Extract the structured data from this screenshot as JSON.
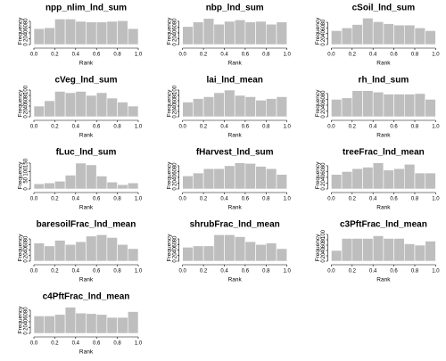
{
  "chart_data": [
    {
      "type": "histogram",
      "title": "npp_nlim_lnd_sum",
      "x_label": "Rank",
      "y_label": "Frequency",
      "color": "#bebebe",
      "bins": [
        0,
        0.1,
        0.2,
        0.3,
        0.4,
        0.5,
        0.6,
        0.7,
        0.8,
        0.9,
        1
      ],
      "values": [
        55,
        58,
        88,
        88,
        80,
        78,
        78,
        80,
        82,
        55
      ],
      "xlim": [
        0,
        1
      ],
      "ylim": [
        0,
        92
      ],
      "xticks": [
        {
          "value": 0,
          "label": "0.0"
        },
        {
          "value": 0.2,
          "label": "0.2"
        },
        {
          "value": 0.4,
          "label": "0.4"
        },
        {
          "value": 0.6,
          "label": "0.6"
        },
        {
          "value": 0.8,
          "label": "0.8"
        },
        {
          "value": 1,
          "label": "1.0"
        }
      ],
      "yticks": [
        0,
        20,
        40,
        60,
        80
      ]
    },
    {
      "type": "histogram",
      "title": "nbp_lnd_sum",
      "x_label": "Rank",
      "y_label": "Frequency",
      "color": "#bebebe",
      "bins": [
        0,
        0.1,
        0.2,
        0.3,
        0.4,
        0.5,
        0.6,
        0.7,
        0.8,
        0.9,
        1
      ],
      "values": [
        62,
        78,
        90,
        70,
        80,
        85,
        78,
        80,
        70,
        78
      ],
      "xlim": [
        0,
        1
      ],
      "ylim": [
        0,
        92
      ],
      "xticks": [
        {
          "value": 0,
          "label": "0.0"
        },
        {
          "value": 0.2,
          "label": "0.2"
        },
        {
          "value": 0.4,
          "label": "0.4"
        },
        {
          "value": 0.6,
          "label": "0.6"
        },
        {
          "value": 0.8,
          "label": "0.8"
        },
        {
          "value": 1,
          "label": "1.0"
        }
      ],
      "yticks": [
        0,
        20,
        40,
        60,
        80
      ]
    },
    {
      "type": "histogram",
      "title": "cSoil_lnd_sum",
      "x_label": "Rank",
      "y_label": "Frequency",
      "color": "#bebebe",
      "bins": [
        0,
        0.1,
        0.2,
        0.3,
        0.4,
        0.5,
        0.6,
        0.7,
        0.8,
        0.9,
        1
      ],
      "values": [
        50,
        60,
        72,
        95,
        82,
        75,
        70,
        70,
        60,
        50
      ],
      "xlim": [
        0,
        1
      ],
      "ylim": [
        0,
        96
      ],
      "xticks": [
        {
          "value": 0,
          "label": "0.0"
        },
        {
          "value": 0.2,
          "label": "0.2"
        },
        {
          "value": 0.4,
          "label": "0.4"
        },
        {
          "value": 0.6,
          "label": "0.6"
        },
        {
          "value": 0.8,
          "label": "0.8"
        },
        {
          "value": 1,
          "label": "1.0"
        }
      ],
      "yticks": [
        0,
        20,
        40,
        60,
        80
      ]
    },
    {
      "type": "histogram",
      "title": "cVeg_lnd_sum",
      "x_label": "Rank",
      "y_label": "Frequency",
      "color": "#bebebe",
      "bins": [
        0,
        0.1,
        0.2,
        0.3,
        0.4,
        0.5,
        0.6,
        0.7,
        0.8,
        0.9,
        1
      ],
      "values": [
        40,
        60,
        95,
        90,
        95,
        80,
        90,
        70,
        55,
        40
      ],
      "xlim": [
        0,
        1
      ],
      "ylim": [
        0,
        100
      ],
      "xticks": [
        {
          "value": 0,
          "label": "0.0"
        },
        {
          "value": 0.2,
          "label": "0.2"
        },
        {
          "value": 0.4,
          "label": "0.4"
        },
        {
          "value": 0.6,
          "label": "0.6"
        },
        {
          "value": 0.8,
          "label": "0.8"
        },
        {
          "value": 1,
          "label": "1.0"
        }
      ],
      "yticks": [
        0,
        20,
        40,
        60,
        80,
        100
      ]
    },
    {
      "type": "histogram",
      "title": "lai_lnd_mean",
      "x_label": "Rank",
      "y_label": "Frequency",
      "color": "#bebebe",
      "bins": [
        0,
        0.1,
        0.2,
        0.3,
        0.4,
        0.5,
        0.6,
        0.7,
        0.8,
        0.9,
        1
      ],
      "values": [
        55,
        68,
        75,
        90,
        100,
        80,
        75,
        62,
        68,
        75
      ],
      "xlim": [
        0,
        1
      ],
      "ylim": [
        0,
        100
      ],
      "xticks": [
        {
          "value": 0,
          "label": "0.0"
        },
        {
          "value": 0.2,
          "label": "0.2"
        },
        {
          "value": 0.4,
          "label": "0.4"
        },
        {
          "value": 0.6,
          "label": "0.6"
        },
        {
          "value": 0.8,
          "label": "0.8"
        },
        {
          "value": 1,
          "label": "1.0"
        }
      ],
      "yticks": [
        0,
        20,
        40,
        60,
        80,
        100
      ]
    },
    {
      "type": "histogram",
      "title": "rh_lnd_sum",
      "x_label": "Rank",
      "y_label": "Frequency",
      "color": "#bebebe",
      "bins": [
        0,
        0.1,
        0.2,
        0.3,
        0.4,
        0.5,
        0.6,
        0.7,
        0.8,
        0.9,
        1
      ],
      "values": [
        60,
        65,
        90,
        90,
        85,
        78,
        78,
        78,
        80,
        60
      ],
      "xlim": [
        0,
        1
      ],
      "ylim": [
        0,
        92
      ],
      "xticks": [
        {
          "value": 0,
          "label": "0.0"
        },
        {
          "value": 0.2,
          "label": "0.2"
        },
        {
          "value": 0.4,
          "label": "0.4"
        },
        {
          "value": 0.6,
          "label": "0.6"
        },
        {
          "value": 0.8,
          "label": "0.8"
        },
        {
          "value": 1,
          "label": "1.0"
        }
      ],
      "yticks": [
        0,
        20,
        40,
        60,
        80
      ]
    },
    {
      "type": "histogram",
      "title": "fLuc_lnd_sum",
      "x_label": "Rank",
      "y_label": "Frequency",
      "color": "#bebebe",
      "bins": [
        0,
        0.1,
        0.2,
        0.3,
        0.4,
        0.5,
        0.6,
        0.7,
        0.8,
        0.9,
        1
      ],
      "values": [
        30,
        35,
        45,
        80,
        150,
        140,
        75,
        40,
        25,
        35
      ],
      "xlim": [
        0,
        1
      ],
      "ylim": [
        0,
        155
      ],
      "xticks": [
        {
          "value": 0,
          "label": "0.0"
        },
        {
          "value": 0.2,
          "label": "0.2"
        },
        {
          "value": 0.4,
          "label": "0.4"
        },
        {
          "value": 0.6,
          "label": "0.6"
        },
        {
          "value": 0.8,
          "label": "0.8"
        },
        {
          "value": 1,
          "label": "1.0"
        }
      ],
      "yticks": [
        0,
        50,
        100,
        150
      ]
    },
    {
      "type": "histogram",
      "title": "fHarvest_lnd_sum",
      "x_label": "Rank",
      "y_label": "Frequency",
      "color": "#bebebe",
      "bins": [
        0,
        0.1,
        0.2,
        0.3,
        0.4,
        0.5,
        0.6,
        0.7,
        0.8,
        0.9,
        1
      ],
      "values": [
        45,
        55,
        70,
        70,
        80,
        90,
        88,
        78,
        70,
        50
      ],
      "xlim": [
        0,
        1
      ],
      "ylim": [
        0,
        92
      ],
      "xticks": [
        {
          "value": 0,
          "label": "0.0"
        },
        {
          "value": 0.2,
          "label": "0.2"
        },
        {
          "value": 0.4,
          "label": "0.4"
        },
        {
          "value": 0.6,
          "label": "0.6"
        },
        {
          "value": 0.8,
          "label": "0.8"
        },
        {
          "value": 1,
          "label": "1.0"
        }
      ],
      "yticks": [
        0,
        20,
        40,
        60,
        80
      ]
    },
    {
      "type": "histogram",
      "title": "treeFrac_lnd_mean",
      "x_label": "Rank",
      "y_label": "Frequency",
      "color": "#bebebe",
      "bins": [
        0,
        0.1,
        0.2,
        0.3,
        0.4,
        0.5,
        0.6,
        0.7,
        0.8,
        0.9,
        1
      ],
      "values": [
        50,
        60,
        70,
        75,
        90,
        65,
        70,
        85,
        55,
        55
      ],
      "xlim": [
        0,
        1
      ],
      "ylim": [
        0,
        92
      ],
      "xticks": [
        {
          "value": 0,
          "label": "0.0"
        },
        {
          "value": 0.2,
          "label": "0.2"
        },
        {
          "value": 0.4,
          "label": "0.4"
        },
        {
          "value": 0.6,
          "label": "0.6"
        },
        {
          "value": 0.8,
          "label": "0.8"
        },
        {
          "value": 1,
          "label": "1.0"
        }
      ],
      "yticks": [
        0,
        20,
        40,
        60,
        80
      ]
    },
    {
      "type": "histogram",
      "title": "baresoilFrac_lnd_mean",
      "x_label": "Rank",
      "y_label": "Frequency",
      "color": "#bebebe",
      "bins": [
        0,
        0.1,
        0.2,
        0.3,
        0.4,
        0.5,
        0.6,
        0.7,
        0.8,
        0.9,
        1
      ],
      "values": [
        65,
        55,
        75,
        60,
        70,
        90,
        95,
        85,
        60,
        45
      ],
      "xlim": [
        0,
        1
      ],
      "ylim": [
        0,
        96
      ],
      "xticks": [
        {
          "value": 0,
          "label": "0.0"
        },
        {
          "value": 0.2,
          "label": "0.2"
        },
        {
          "value": 0.4,
          "label": "0.4"
        },
        {
          "value": 0.6,
          "label": "0.6"
        },
        {
          "value": 0.8,
          "label": "0.8"
        },
        {
          "value": 1,
          "label": "1.0"
        }
      ],
      "yticks": [
        0,
        20,
        40,
        60,
        80
      ]
    },
    {
      "type": "histogram",
      "title": "shrubFrac_lnd_mean",
      "x_label": "Rank",
      "y_label": "Frequency",
      "color": "#bebebe",
      "bins": [
        0,
        0.1,
        0.2,
        0.3,
        0.4,
        0.5,
        0.6,
        0.7,
        0.8,
        0.9,
        1
      ],
      "values": [
        50,
        55,
        55,
        95,
        95,
        88,
        70,
        60,
        65,
        45
      ],
      "xlim": [
        0,
        1
      ],
      "ylim": [
        0,
        96
      ],
      "xticks": [
        {
          "value": 0,
          "label": "0.0"
        },
        {
          "value": 0.2,
          "label": "0.2"
        },
        {
          "value": 0.4,
          "label": "0.4"
        },
        {
          "value": 0.6,
          "label": "0.6"
        },
        {
          "value": 0.8,
          "label": "0.8"
        },
        {
          "value": 1,
          "label": "1.0"
        }
      ],
      "yticks": [
        0,
        20,
        40,
        60,
        80
      ]
    },
    {
      "type": "histogram",
      "title": "c3PftFrac_lnd_mean",
      "x_label": "Rank",
      "y_label": "Frequency",
      "color": "#bebebe",
      "bins": [
        0,
        0.1,
        0.2,
        0.3,
        0.4,
        0.5,
        0.6,
        0.7,
        0.8,
        0.9,
        1
      ],
      "values": [
        40,
        85,
        85,
        85,
        95,
        85,
        85,
        65,
        60,
        75
      ],
      "xlim": [
        0,
        1
      ],
      "ylim": [
        0,
        100
      ],
      "xticks": [
        {
          "value": 0,
          "label": "0.0"
        },
        {
          "value": 0.2,
          "label": "0.2"
        },
        {
          "value": 0.4,
          "label": "0.4"
        },
        {
          "value": 0.6,
          "label": "0.6"
        },
        {
          "value": 0.8,
          "label": "0.8"
        },
        {
          "value": 1,
          "label": "1.0"
        }
      ],
      "yticks": [
        0,
        20,
        40,
        60,
        80,
        100
      ]
    },
    {
      "type": "histogram",
      "title": "c4PftFrac_lnd_mean",
      "x_label": "Rank",
      "y_label": "Frequency",
      "color": "#bebebe",
      "bins": [
        0,
        0.1,
        0.2,
        0.3,
        0.4,
        0.5,
        0.6,
        0.7,
        0.8,
        0.9,
        1
      ],
      "values": [
        60,
        60,
        65,
        90,
        70,
        68,
        65,
        55,
        55,
        75
      ],
      "xlim": [
        0,
        1
      ],
      "ylim": [
        0,
        92
      ],
      "xticks": [
        {
          "value": 0,
          "label": "0.0"
        },
        {
          "value": 0.2,
          "label": "0.2"
        },
        {
          "value": 0.4,
          "label": "0.4"
        },
        {
          "value": 0.6,
          "label": "0.6"
        },
        {
          "value": 0.8,
          "label": "0.8"
        },
        {
          "value": 1,
          "label": "1.0"
        }
      ],
      "yticks": [
        0,
        20,
        40,
        60,
        80
      ]
    }
  ]
}
